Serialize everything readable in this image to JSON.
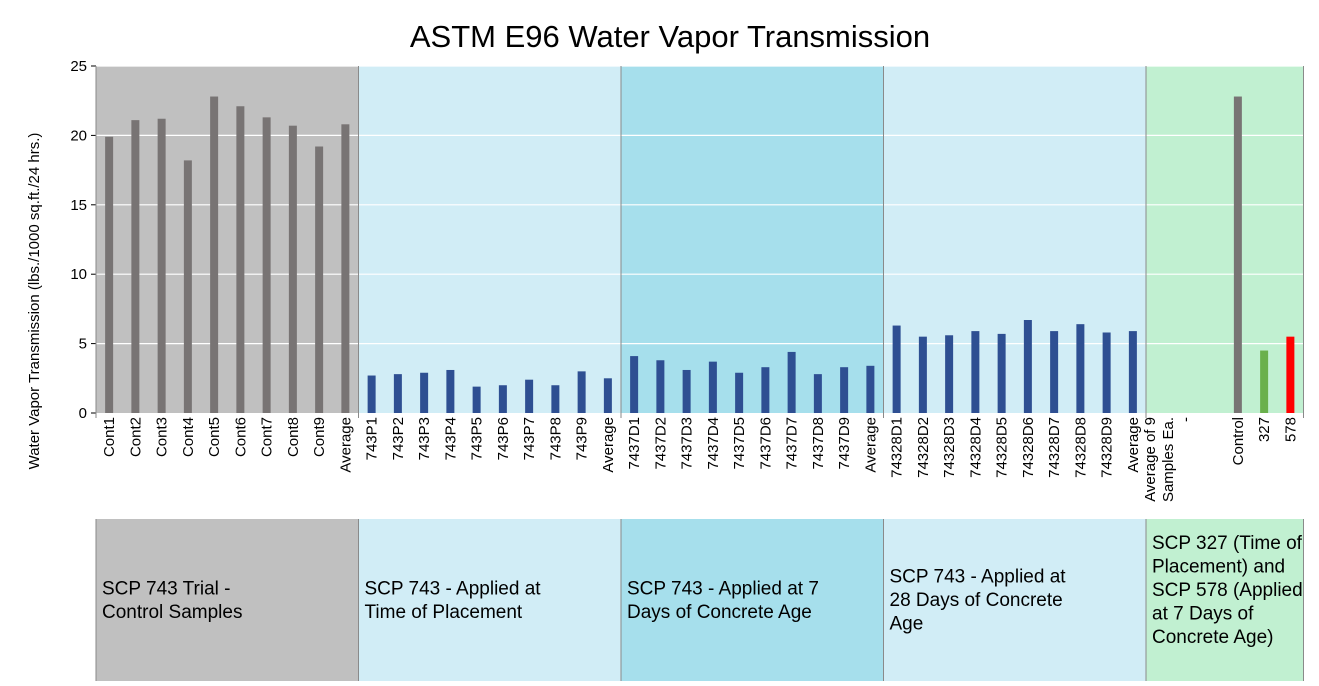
{
  "chart_data": {
    "type": "bar",
    "title": "ASTM E96 Water Vapor Transmission",
    "ylabel": "Water Vapor Transmission (lbs./1000 sq.ft./24 hrs.)",
    "ylim": [
      0,
      25
    ],
    "yticks": [
      0,
      5,
      10,
      15,
      20,
      25
    ],
    "grid": true,
    "colors": {
      "control": "#787474",
      "treated": "#2e4f92",
      "green": "#6ab04c",
      "red": "#ff0000"
    },
    "groups": [
      {
        "label": "SCP 743 Trial - Control Samples",
        "bg": "#c0c0c0",
        "categories": [
          "Cont1",
          "Cont2",
          "Cont3",
          "Cont4",
          "Cont5",
          "Cont6",
          "Cont7",
          "Cont8",
          "Cont9",
          "Average"
        ],
        "values": [
          19.9,
          21.1,
          21.2,
          18.2,
          22.8,
          22.1,
          21.3,
          20.7,
          19.2,
          20.8
        ],
        "bar_colors": [
          "control",
          "control",
          "control",
          "control",
          "control",
          "control",
          "control",
          "control",
          "control",
          "control"
        ]
      },
      {
        "label": "SCP 743 - Applied at Time of Placement",
        "bg": "#d1edf6",
        "categories": [
          "743P1",
          "743P2",
          "743P3",
          "743P4",
          "743P5",
          "743P6",
          "743P7",
          "743P8",
          "743P9",
          "Average"
        ],
        "values": [
          2.7,
          2.8,
          2.9,
          3.1,
          1.9,
          2.0,
          2.4,
          2.0,
          3.0,
          2.5
        ],
        "bar_colors": [
          "treated",
          "treated",
          "treated",
          "treated",
          "treated",
          "treated",
          "treated",
          "treated",
          "treated",
          "treated"
        ]
      },
      {
        "label": "SCP 743 - Applied at 7 Days of Concrete Age",
        "bg": "#a6dfec",
        "categories": [
          "7437D1",
          "7437D2",
          "7437D3",
          "7437D4",
          "7437D5",
          "7437D6",
          "7437D7",
          "7437D8",
          "7437D9",
          "Average"
        ],
        "values": [
          4.1,
          3.8,
          3.1,
          3.7,
          2.9,
          3.3,
          4.4,
          2.8,
          3.3,
          3.4
        ],
        "bar_colors": [
          "treated",
          "treated",
          "treated",
          "treated",
          "treated",
          "treated",
          "treated",
          "treated",
          "treated",
          "treated"
        ]
      },
      {
        "label": "SCP 743 - Applied at 28 Days of Concrete Age",
        "bg": "#d1edf6",
        "categories": [
          "74328D1",
          "74328D2",
          "74328D3",
          "74328D4",
          "74328D5",
          "74328D6",
          "74328D7",
          "74328D8",
          "74328D9",
          "Average"
        ],
        "values": [
          6.3,
          5.5,
          5.6,
          5.9,
          5.7,
          6.7,
          5.9,
          6.4,
          5.8,
          5.9
        ],
        "bar_colors": [
          "treated",
          "treated",
          "treated",
          "treated",
          "treated",
          "treated",
          "treated",
          "treated",
          "treated",
          "treated"
        ]
      },
      {
        "label": "SCP 327 (Time of Placement) and SCP 578 (Applied at 7 Days of Concrete Age)",
        "bg": "#c1f0d1",
        "categories": [
          "Average of 9 Samples Ea.",
          "-",
          "",
          "Control",
          "327",
          "578"
        ],
        "values": [
          null,
          null,
          null,
          22.8,
          4.5,
          5.5
        ],
        "bar_colors": [
          null,
          null,
          null,
          "control",
          "green",
          "red"
        ]
      }
    ]
  }
}
